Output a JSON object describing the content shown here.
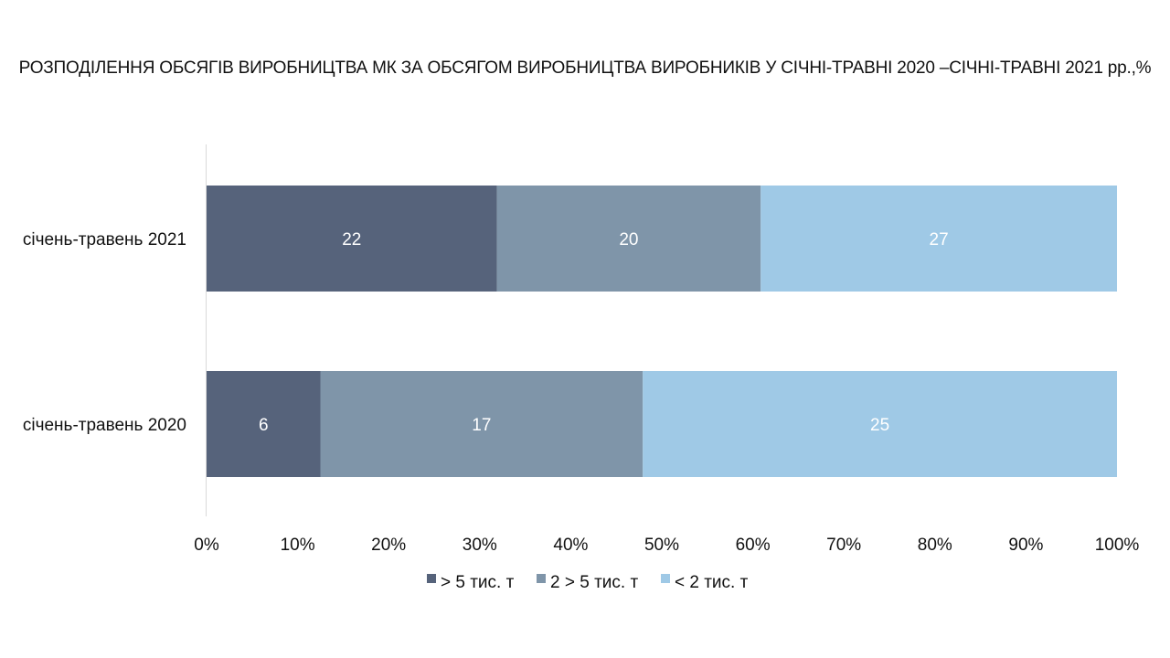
{
  "chart_data": {
    "type": "bar",
    "orientation": "horizontal",
    "stacked": "percent",
    "title": "РОЗПОДІЛЕННЯ ОБСЯГІВ ВИРОБНИЦТВА МК ЗА ОБСЯГОМ ВИРОБНИЦТВА ВИРОБНИКІВ У СІЧНІ-ТРАВНІ 2020 –СІЧНІ-ТРАВНІ 2021 рр.,%",
    "categories": [
      "січень-травень 2021",
      "січень-травень 2020"
    ],
    "series": [
      {
        "name": "> 5 тис. т",
        "values": [
          22,
          6
        ],
        "color": "#56637b"
      },
      {
        "name": "2 > 5 тис. т",
        "values": [
          20,
          17
        ],
        "color": "#7f95a9"
      },
      {
        "name": "< 2 тис. т",
        "values": [
          27,
          25
        ],
        "color": "#9fc9e6"
      }
    ],
    "xlim": [
      0,
      100
    ],
    "x_ticks": [
      "0%",
      "10%",
      "20%",
      "30%",
      "40%",
      "50%",
      "60%",
      "70%",
      "80%",
      "90%",
      "100%"
    ],
    "grid": false,
    "legend_position": "bottom"
  }
}
